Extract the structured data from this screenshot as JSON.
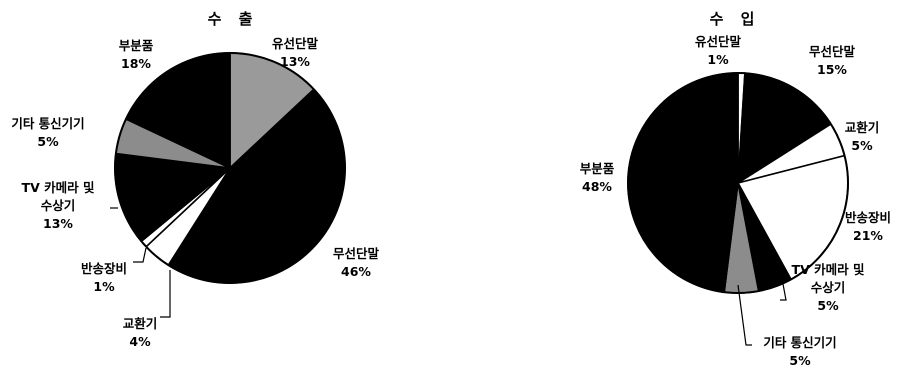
{
  "chart_data": [
    {
      "type": "pie",
      "title": "수 출",
      "slices": [
        {
          "label": "유선단말",
          "value": 13,
          "value_label": "13%",
          "fill": "#9a9a9a"
        },
        {
          "label": "무선단말",
          "value": 46,
          "value_label": "46%",
          "fill": "#000000"
        },
        {
          "label": "교환기",
          "value": 4,
          "value_label": "4%",
          "fill": "#ffffff"
        },
        {
          "label": "반송장비",
          "value": 1,
          "value_label": "1%",
          "fill": "#ffffff"
        },
        {
          "label": "TV 카메라 및\n수상기",
          "value": 13,
          "value_label": "13%",
          "fill": "#000000"
        },
        {
          "label": "기타 통신기기",
          "value": 5,
          "value_label": "5%",
          "fill": "#8c8c8c"
        },
        {
          "label": "부분품",
          "value": 18,
          "value_label": "18%",
          "fill": "#000000"
        }
      ]
    },
    {
      "type": "pie",
      "title": "수 입",
      "slices": [
        {
          "label": "유선단말",
          "value": 1,
          "value_label": "1%",
          "fill": "#ffffff"
        },
        {
          "label": "무선단말",
          "value": 15,
          "value_label": "15%",
          "fill": "#000000"
        },
        {
          "label": "교환기",
          "value": 5,
          "value_label": "5%",
          "fill": "#ffffff"
        },
        {
          "label": "반송장비",
          "value": 21,
          "value_label": "21%",
          "fill": "#ffffff"
        },
        {
          "label": "TV 카메라 및\n수상기",
          "value": 5,
          "value_label": "5%",
          "fill": "#000000"
        },
        {
          "label": "기타 통신기기",
          "value": 5,
          "value_label": "5%",
          "fill": "#8c8c8c"
        },
        {
          "label": "부분품",
          "value": 48,
          "value_label": "48%",
          "fill": "#000000"
        }
      ]
    }
  ]
}
